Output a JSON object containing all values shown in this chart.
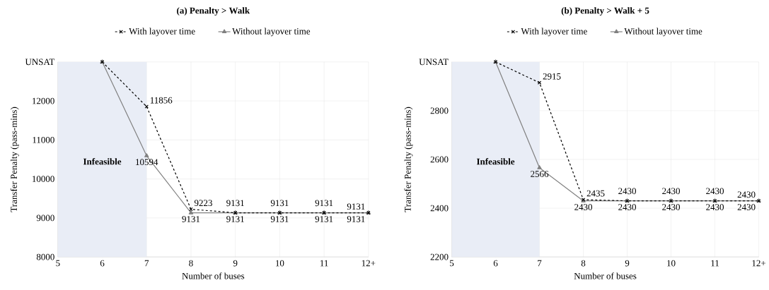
{
  "chart_data": [
    {
      "type": "line",
      "title": "(a) Penalty > Walk",
      "xlabel": "Number of buses",
      "ylabel": "Transfer Penalty (pass-mins)",
      "x": [
        6,
        7,
        8,
        9,
        10,
        11,
        12
      ],
      "series": [
        {
          "name": "With layover time",
          "color": "#000000",
          "marker": "cross",
          "line_style": "dashed",
          "values": [
            13000,
            11856,
            9223,
            9131,
            9131,
            9131,
            9131
          ],
          "value_labels": [
            null,
            "11856",
            "9223",
            "9131",
            "9131",
            "9131",
            "9131"
          ]
        },
        {
          "name": "Without layover time",
          "color": "#808080",
          "marker": "triangle",
          "line_style": "solid",
          "values": [
            13000,
            10594,
            9131,
            9131,
            9131,
            9131,
            9131
          ],
          "value_labels": [
            null,
            "10594",
            "9131",
            "9131",
            "9131",
            "9131",
            "9131"
          ]
        }
      ],
      "xlim": [
        5,
        12
      ],
      "xticks": [
        5,
        6,
        7,
        8,
        9,
        10,
        11,
        {
          "value": 12,
          "label": "12+"
        }
      ],
      "ylim": [
        8000,
        13000
      ],
      "yticks": [
        8000,
        9000,
        10000,
        11000,
        12000,
        {
          "value": 13000,
          "label": "UNSAT"
        }
      ],
      "bands": [
        {
          "axis": "x",
          "from": 5,
          "to": 7,
          "label": "Infeasible",
          "color": "#e9edf6"
        }
      ],
      "grid": true,
      "legend": "top"
    },
    {
      "type": "line",
      "title": "(b) Penalty > Walk + 5",
      "xlabel": "Number of buses",
      "ylabel": "Transfer Penalty (pass-mins)",
      "x": [
        6,
        7,
        8,
        9,
        10,
        11,
        12
      ],
      "series": [
        {
          "name": "With layover time",
          "color": "#000000",
          "marker": "cross",
          "line_style": "dashed",
          "values": [
            3000,
            2915,
            2435,
            2430,
            2430,
            2430,
            2430
          ],
          "value_labels": [
            null,
            "2915",
            "2435",
            "2430",
            "2430",
            "2430",
            "2430"
          ]
        },
        {
          "name": "Without layover time",
          "color": "#808080",
          "marker": "triangle",
          "line_style": "solid",
          "values": [
            3000,
            2566,
            2430,
            2430,
            2430,
            2430,
            2430
          ],
          "value_labels": [
            null,
            "2566",
            "2430",
            "2430",
            "2430",
            "2430",
            "2430"
          ]
        }
      ],
      "xlim": [
        5,
        12
      ],
      "xticks": [
        5,
        6,
        7,
        8,
        9,
        10,
        11,
        {
          "value": 12,
          "label": "12+"
        }
      ],
      "ylim": [
        2200,
        3000
      ],
      "yticks": [
        2200,
        2400,
        2600,
        2800,
        {
          "value": 3000,
          "label": "UNSAT"
        }
      ],
      "bands": [
        {
          "axis": "x",
          "from": 5,
          "to": 7,
          "label": "Infeasible",
          "color": "#e9edf6"
        }
      ],
      "grid": true,
      "legend": "top"
    }
  ]
}
